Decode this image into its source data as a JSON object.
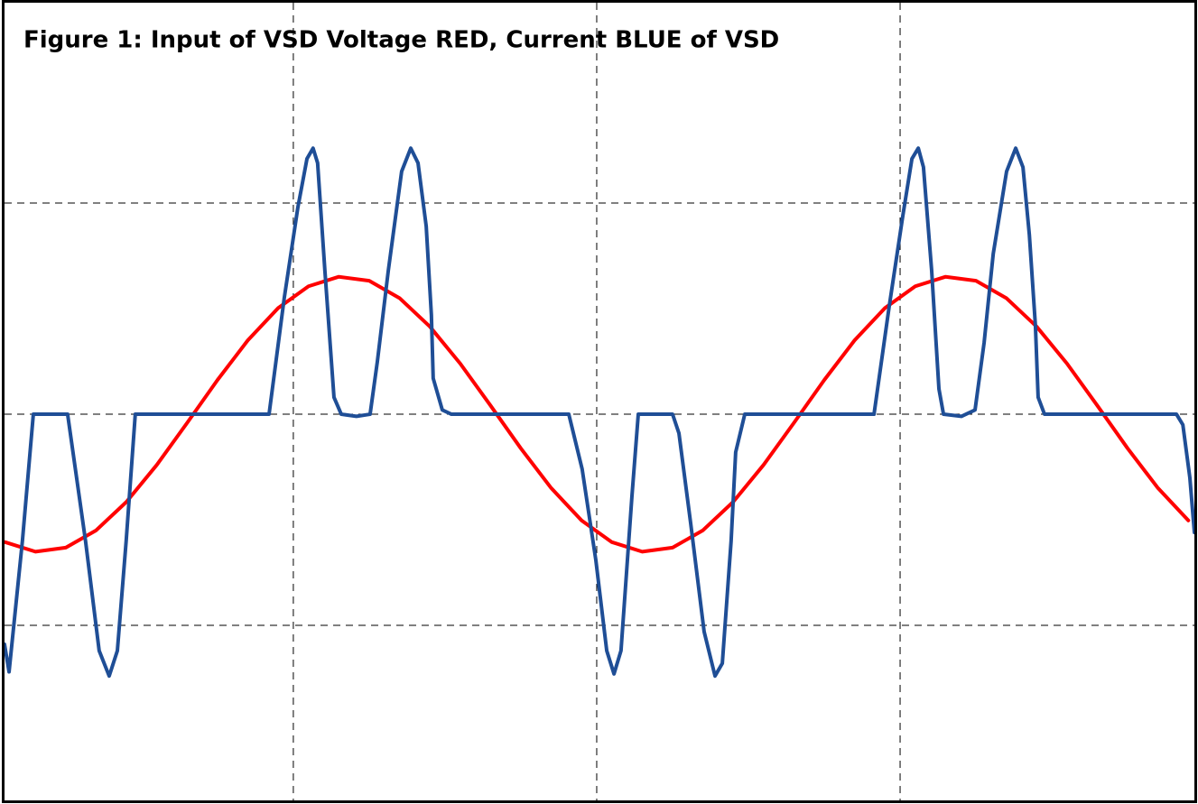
{
  "chart_data": {
    "type": "line",
    "title": "Figure 1: Input of VSD Voltage RED, Current BLUE of VSD",
    "xlim": [
      0.048,
      3.97
    ],
    "ylim": [
      -1.829,
      1.949
    ],
    "grid": {
      "x": [
        1,
        2,
        3
      ],
      "y": [
        -1,
        0,
        1
      ]
    },
    "series": [
      {
        "color": "#ff0000",
        "x": [
          0.05,
          0.15,
          0.25,
          0.35,
          0.45,
          0.55,
          0.65,
          0.75,
          0.85,
          0.95,
          1.05,
          1.15,
          1.25,
          1.35,
          1.45,
          1.55,
          1.65,
          1.75,
          1.85,
          1.95,
          2.05,
          2.15,
          2.25,
          2.35,
          2.45,
          2.55,
          2.65,
          2.75,
          2.85,
          2.95,
          3.05,
          3.15,
          3.25,
          3.35,
          3.45,
          3.55,
          3.65,
          3.75,
          3.85,
          3.95
        ],
        "values": [
          -0.606,
          -0.651,
          -0.632,
          -0.55,
          -0.415,
          -0.24,
          -0.041,
          0.162,
          0.35,
          0.503,
          0.606,
          0.651,
          0.632,
          0.55,
          0.415,
          0.24,
          0.041,
          -0.162,
          -0.35,
          -0.503,
          -0.606,
          -0.651,
          -0.632,
          -0.55,
          -0.415,
          -0.24,
          -0.041,
          0.162,
          0.35,
          0.503,
          0.606,
          0.651,
          0.632,
          0.55,
          0.415,
          0.24,
          0.041,
          -0.162,
          -0.35,
          -0.503
        ]
      },
      {
        "color": "#1f4e96",
        "x": [
          0.048,
          0.063,
          0.107,
          0.143,
          0.256,
          0.315,
          0.36,
          0.393,
          0.42,
          0.449,
          0.479,
          0.92,
          0.97,
          1.015,
          1.045,
          1.065,
          1.08,
          1.104,
          1.134,
          1.158,
          1.208,
          1.253,
          1.277,
          1.313,
          1.357,
          1.387,
          1.411,
          1.438,
          1.455,
          1.461,
          1.491,
          1.521,
          1.908,
          1.952,
          1.997,
          2.033,
          2.057,
          2.08,
          2.116,
          2.137,
          2.25,
          2.271,
          2.31,
          2.354,
          2.39,
          2.414,
          2.443,
          2.458,
          2.488,
          2.914,
          2.964,
          3.009,
          3.039,
          3.06,
          3.077,
          3.104,
          3.128,
          3.143,
          3.202,
          3.247,
          3.277,
          3.307,
          3.351,
          3.381,
          3.405,
          3.426,
          3.446,
          3.455,
          3.476,
          3.911,
          3.932,
          3.955,
          3.97
        ],
        "values": [
          -1.09,
          -1.22,
          -0.6,
          0,
          0,
          -0.6,
          -1.12,
          -1.24,
          -1.12,
          -0.6,
          0,
          0,
          0.55,
          0.98,
          1.21,
          1.26,
          1.19,
          0.68,
          0.08,
          0,
          -0.01,
          0,
          0.25,
          0.68,
          1.15,
          1.26,
          1.19,
          0.89,
          0.47,
          0.17,
          0.02,
          0,
          0,
          -0.26,
          -0.69,
          -1.12,
          -1.23,
          -1.12,
          -0.39,
          0,
          0,
          -0.09,
          -0.52,
          -1.03,
          -1.24,
          -1.18,
          -0.6,
          -0.18,
          0,
          0,
          0.51,
          0.94,
          1.21,
          1.26,
          1.17,
          0.68,
          0.12,
          0,
          -0.01,
          0.02,
          0.34,
          0.76,
          1.15,
          1.26,
          1.17,
          0.85,
          0.42,
          0.08,
          0,
          0,
          -0.05,
          -0.3,
          -0.56
        ]
      }
    ]
  }
}
